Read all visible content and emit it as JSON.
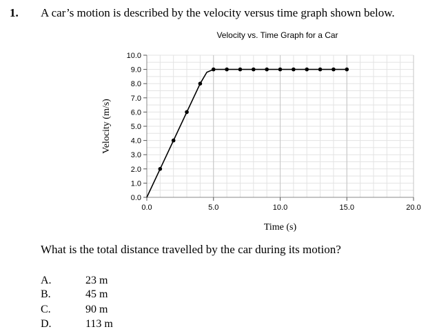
{
  "question": {
    "number": "1.",
    "text": "A car’s motion is described by the velocity versus time graph shown below.",
    "sub_question": "What is the total distance travelled by the car during its motion?"
  },
  "choices": [
    {
      "letter": "A.",
      "value": "23 m"
    },
    {
      "letter": "B.",
      "value": "45 m"
    },
    {
      "letter": "C.",
      "value": "90 m"
    },
    {
      "letter": "D.",
      "value": "113 m"
    }
  ],
  "chart_data": {
    "type": "line",
    "title": "Velocity vs. Time Graph for a Car",
    "xlabel": "Time (s)",
    "ylabel": "Velocity (m/s)",
    "xlim": [
      0,
      20
    ],
    "ylim": [
      0,
      10
    ],
    "x_tick_labels": [
      "0.0",
      "5.0",
      "10.0",
      "15.0",
      "20.0"
    ],
    "y_tick_labels": [
      "0.0",
      "1.0",
      "2.0",
      "3.0",
      "4.0",
      "5.0",
      "6.0",
      "7.0",
      "8.0",
      "9.0",
      "10.0"
    ],
    "grid": true,
    "line_x": [
      0,
      1,
      2,
      3,
      4,
      4.5,
      5,
      6,
      7,
      8,
      9,
      10,
      11,
      12,
      13,
      14,
      15
    ],
    "line_y": [
      0,
      2,
      4,
      6,
      8,
      8.8,
      9,
      9,
      9,
      9,
      9,
      9,
      9,
      9,
      9,
      9,
      9
    ],
    "point_x": [
      1,
      2,
      3,
      4,
      5,
      6,
      7,
      8,
      9,
      10,
      11,
      12,
      13,
      14,
      15
    ],
    "point_y": [
      2,
      4,
      6,
      8,
      9,
      9,
      9,
      9,
      9,
      9,
      9,
      9,
      9,
      9,
      9
    ]
  }
}
